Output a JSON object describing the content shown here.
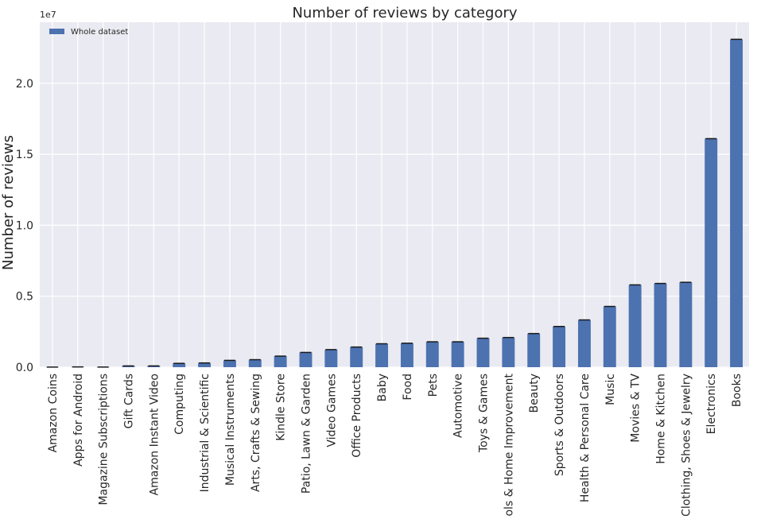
{
  "chart_data": {
    "type": "bar",
    "title": "Number of reviews by category",
    "xlabel": "",
    "ylabel": "Number of reviews",
    "y_multiplier_label": "1e7",
    "ylim": [
      0,
      24300000
    ],
    "yticks": [
      0,
      5000000,
      10000000,
      15000000,
      20000000
    ],
    "ytick_labels": [
      "0.0",
      "0.5",
      "1.0",
      "1.5",
      "2.0"
    ],
    "grid": true,
    "legend_position": "top-left",
    "bar_color": "#4c72b0",
    "plot_background": "#eaeaf2",
    "series": [
      {
        "name": "Whole dataset",
        "values": [
          8000,
          20000,
          10000,
          90000,
          90000,
          270000,
          300000,
          480000,
          530000,
          780000,
          1040000,
          1240000,
          1420000,
          1650000,
          1690000,
          1790000,
          1790000,
          2040000,
          2090000,
          2370000,
          2870000,
          3330000,
          4280000,
          5800000,
          5900000,
          5980000,
          16100000,
          23100000
        ]
      }
    ],
    "categories": [
      "Amazon Coins",
      "Apps for Android",
      "Magazine Subscriptions",
      "Gift Cards",
      "Amazon Instant Video",
      "Computing",
      "Industrial & Scientific",
      "Musical Instruments",
      "Arts, Crafts & Sewing",
      "Kindle Store",
      "Patio, Lawn & Garden",
      "Video Games",
      "Office Products",
      "Baby",
      "Food",
      "Pets",
      "Automotive",
      "Toys & Games",
      "Tools & Home Improvement",
      "Beauty",
      "Sports & Outdoors",
      "Health & Personal Care",
      "Music",
      "Movies & TV",
      "Home & Kitchen",
      "Clothing, Shoes & Jewelry",
      "Electronics",
      "Books"
    ]
  }
}
